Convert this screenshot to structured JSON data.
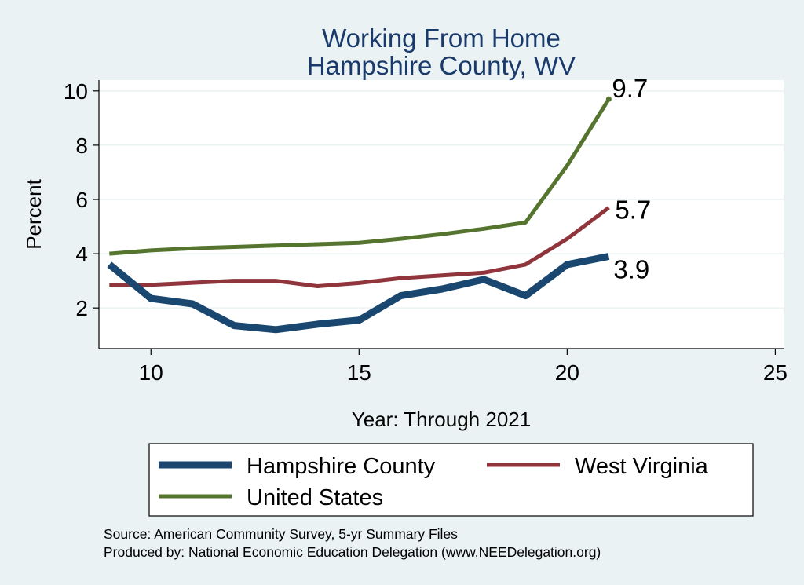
{
  "chart_data": {
    "type": "line",
    "title": [
      "Working From Home",
      "Hampshire County, WV"
    ],
    "xlabel": "Year: Through 2021",
    "ylabel": "Percent",
    "xlim": [
      8.75,
      25.2
    ],
    "ylim": [
      0.5,
      10.4
    ],
    "xticks": [
      10,
      15,
      20,
      25
    ],
    "yticks": [
      2,
      4,
      6,
      8,
      10
    ],
    "grid": "horizontal",
    "legend_position": "bottom",
    "colors": {
      "background": "#EAF2F3",
      "plot_background": "#FFFFFF",
      "title": "#1A3A6C",
      "grid": "#EAF2F3"
    },
    "series": [
      {
        "name": "Hampshire County",
        "color": "#1A476F",
        "width": 9,
        "x": [
          9,
          10,
          11,
          12,
          13,
          14,
          15,
          16,
          17,
          18,
          19,
          20,
          21
        ],
        "y": [
          3.6,
          2.35,
          2.15,
          1.35,
          1.2,
          1.4,
          1.55,
          2.45,
          2.7,
          3.05,
          2.45,
          3.6,
          3.9
        ],
        "end_label": "3.9"
      },
      {
        "name": "West Virginia",
        "color": "#90353B",
        "width": 5,
        "x": [
          9,
          10,
          11,
          12,
          13,
          14,
          15,
          16,
          17,
          18,
          19,
          20,
          21
        ],
        "y": [
          2.85,
          2.85,
          2.93,
          3.0,
          3.0,
          2.8,
          2.92,
          3.1,
          3.2,
          3.3,
          3.6,
          4.55,
          5.7
        ],
        "end_label": "5.7"
      },
      {
        "name": "United States",
        "color": "#55752F",
        "width": 5,
        "x": [
          9,
          10,
          11,
          12,
          13,
          14,
          15,
          16,
          17,
          18,
          19,
          20,
          21
        ],
        "y": [
          4.0,
          4.12,
          4.2,
          4.25,
          4.3,
          4.35,
          4.4,
          4.55,
          4.72,
          4.92,
          5.15,
          7.25,
          9.7
        ],
        "end_label": "9.7"
      }
    ]
  },
  "footer": {
    "source": "Source: American Community Survey, 5-yr Summary Files",
    "produced": "Produced by: National Economic Education Delegation (www.NEEDelegation.org)"
  }
}
